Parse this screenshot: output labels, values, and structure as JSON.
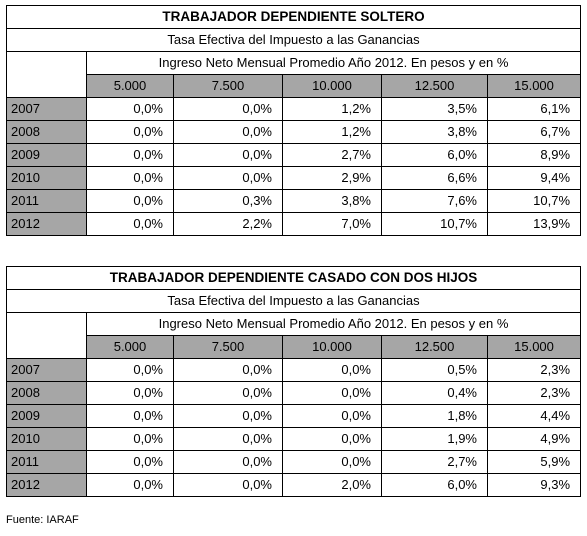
{
  "tables": [
    {
      "title": "TRABAJADOR DEPENDIENTE SOLTERO",
      "subtitle": "Tasa Efectiva del Impuesto a las Ganancias",
      "column_group": "Ingreso Neto Mensual Promedio Año 2012. En pesos y en %",
      "columns": [
        "5.000",
        "7.500",
        "10.000",
        "12.500",
        "15.000"
      ],
      "rows": [
        {
          "year": "2007",
          "values": [
            "0,0%",
            "0,0%",
            "1,2%",
            "3,5%",
            "6,1%"
          ]
        },
        {
          "year": "2008",
          "values": [
            "0,0%",
            "0,0%",
            "1,2%",
            "3,8%",
            "6,7%"
          ]
        },
        {
          "year": "2009",
          "values": [
            "0,0%",
            "0,0%",
            "2,7%",
            "6,0%",
            "8,9%"
          ]
        },
        {
          "year": "2010",
          "values": [
            "0,0%",
            "0,0%",
            "2,9%",
            "6,6%",
            "9,4%"
          ]
        },
        {
          "year": "2011",
          "values": [
            "0,0%",
            "0,3%",
            "3,8%",
            "7,6%",
            "10,7%"
          ]
        },
        {
          "year": "2012",
          "values": [
            "0,0%",
            "2,2%",
            "7,0%",
            "10,7%",
            "13,9%"
          ]
        }
      ]
    },
    {
      "title": "TRABAJADOR DEPENDIENTE CASADO CON DOS HIJOS",
      "subtitle": "Tasa Efectiva del Impuesto a las Ganancias",
      "column_group": "Ingreso Neto Mensual Promedio Año 2012. En pesos y en %",
      "columns": [
        "5.000",
        "7.500",
        "10.000",
        "12.500",
        "15.000"
      ],
      "rows": [
        {
          "year": "2007",
          "values": [
            "0,0%",
            "0,0%",
            "0,0%",
            "0,5%",
            "2,3%"
          ]
        },
        {
          "year": "2008",
          "values": [
            "0,0%",
            "0,0%",
            "0,0%",
            "0,4%",
            "2,3%"
          ]
        },
        {
          "year": "2009",
          "values": [
            "0,0%",
            "0,0%",
            "0,0%",
            "1,8%",
            "4,4%"
          ]
        },
        {
          "year": "2010",
          "values": [
            "0,0%",
            "0,0%",
            "0,0%",
            "1,9%",
            "4,9%"
          ]
        },
        {
          "year": "2011",
          "values": [
            "0,0%",
            "0,0%",
            "0,0%",
            "2,7%",
            "5,9%"
          ]
        },
        {
          "year": "2012",
          "values": [
            "0,0%",
            "0,0%",
            "2,0%",
            "6,0%",
            "9,3%"
          ]
        }
      ]
    }
  ],
  "source": "Fuente: IARAF"
}
